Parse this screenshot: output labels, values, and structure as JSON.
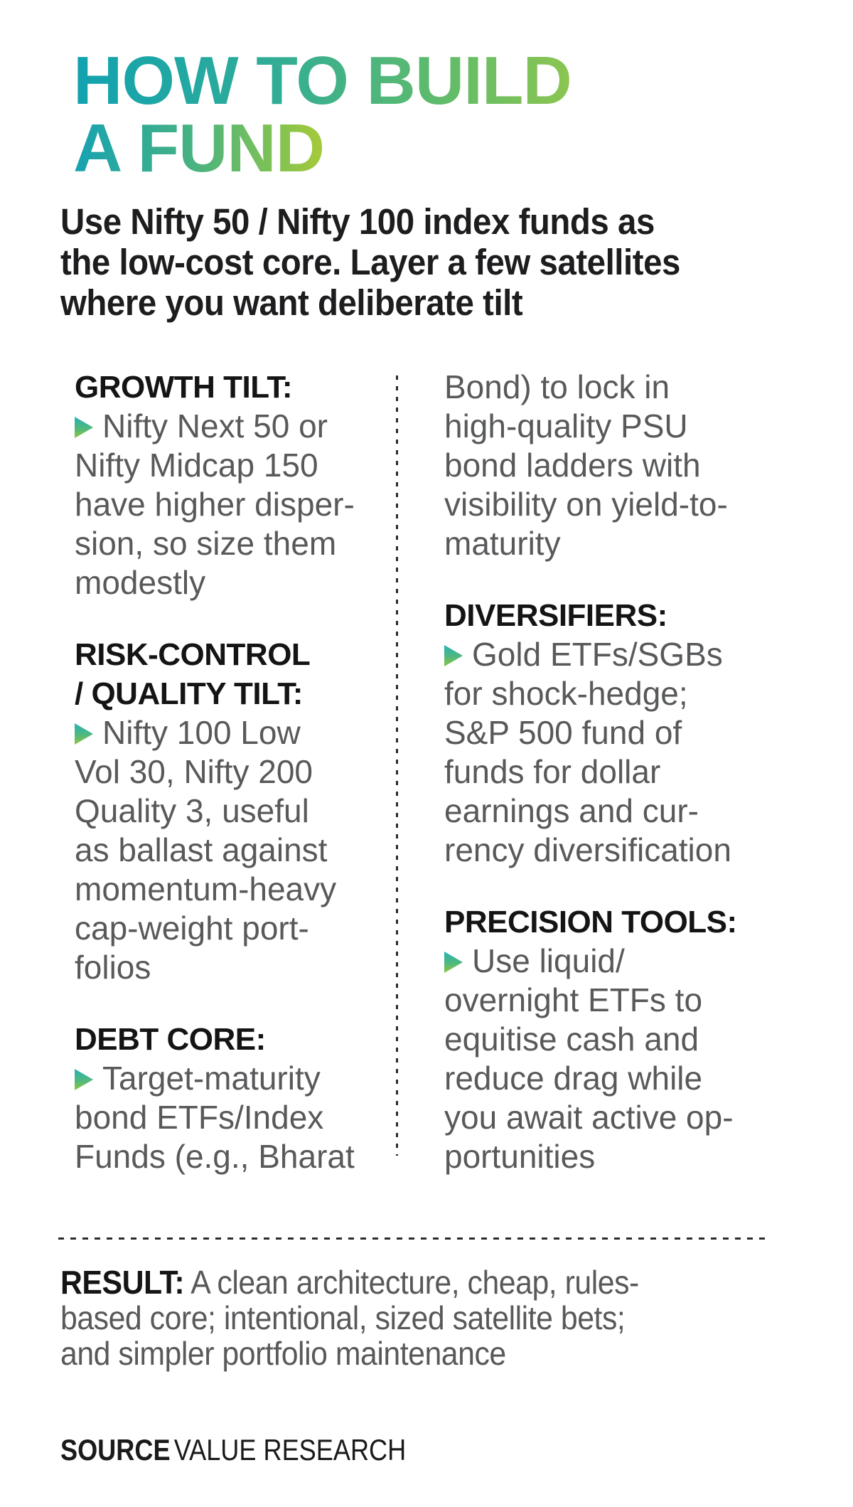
{
  "title": {
    "line1": "HOW TO BUILD",
    "line2": "A FUND"
  },
  "intro": "Use Nifty 50 / Nifty 100 index funds as\nthe low-cost core. Layer a few satellites\nwhere you want deliberate tilt",
  "columns": {
    "left": {
      "sections": [
        {
          "heading": "GROWTH TILT:",
          "body": "Nifty Next 50 or\nNifty Midcap 150\nhave higher disper-\nsion, so size them\nmodestly"
        },
        {
          "heading": "RISK-CONTROL\n/ QUALITY TILT:",
          "body": "Nifty 100 Low\nVol 30, Nifty 200\nQuality 3, useful\nas ballast against\nmomentum-heavy\ncap-weight port-\nfolios"
        },
        {
          "heading": "DEBT CORE:",
          "body": "Target-maturity\nbond ETFs/Index\nFunds (e.g., Bharat"
        }
      ]
    },
    "right": {
      "continuation": "Bond) to lock in\nhigh-quality PSU\nbond ladders with\nvisibility on yield-to-\nmaturity",
      "sections": [
        {
          "heading": "DIVERSIFIERS:",
          "body": "Gold ETFs/SGBs\nfor shock-hedge;\nS&P 500 fund of\nfunds for dollar\nearnings and cur-\nrency diversification"
        },
        {
          "heading": "PRECISION TOOLS:",
          "body": "Use liquid/\novernight ETFs to\nequitise cash and\nreduce drag while\nyou await active op-\nportunities"
        }
      ]
    }
  },
  "result": {
    "label": "RESULT:",
    "text": "A clean architecture, cheap, rules-\nbased core; intentional, sized satellite bets;\nand simpler portfolio maintenance"
  },
  "source": {
    "label": "SOURCE",
    "value": "VALUE RESEARCH"
  },
  "icons": {
    "bullet": "triangle-bullet-icon"
  },
  "colors": {
    "background": "#ffffff",
    "title_gradient_line1": [
      "#12a2b0",
      "#8cc551"
    ],
    "title_gradient_line2": [
      "#16a2b2",
      "#a6ca3a"
    ],
    "bullet_gradient": [
      "#27b2b4",
      "#8dc63f"
    ],
    "heading_text": "#141414",
    "body_text": "#58595b",
    "intro_text": "#1d1d1f",
    "dash": "#2b2b2b"
  }
}
